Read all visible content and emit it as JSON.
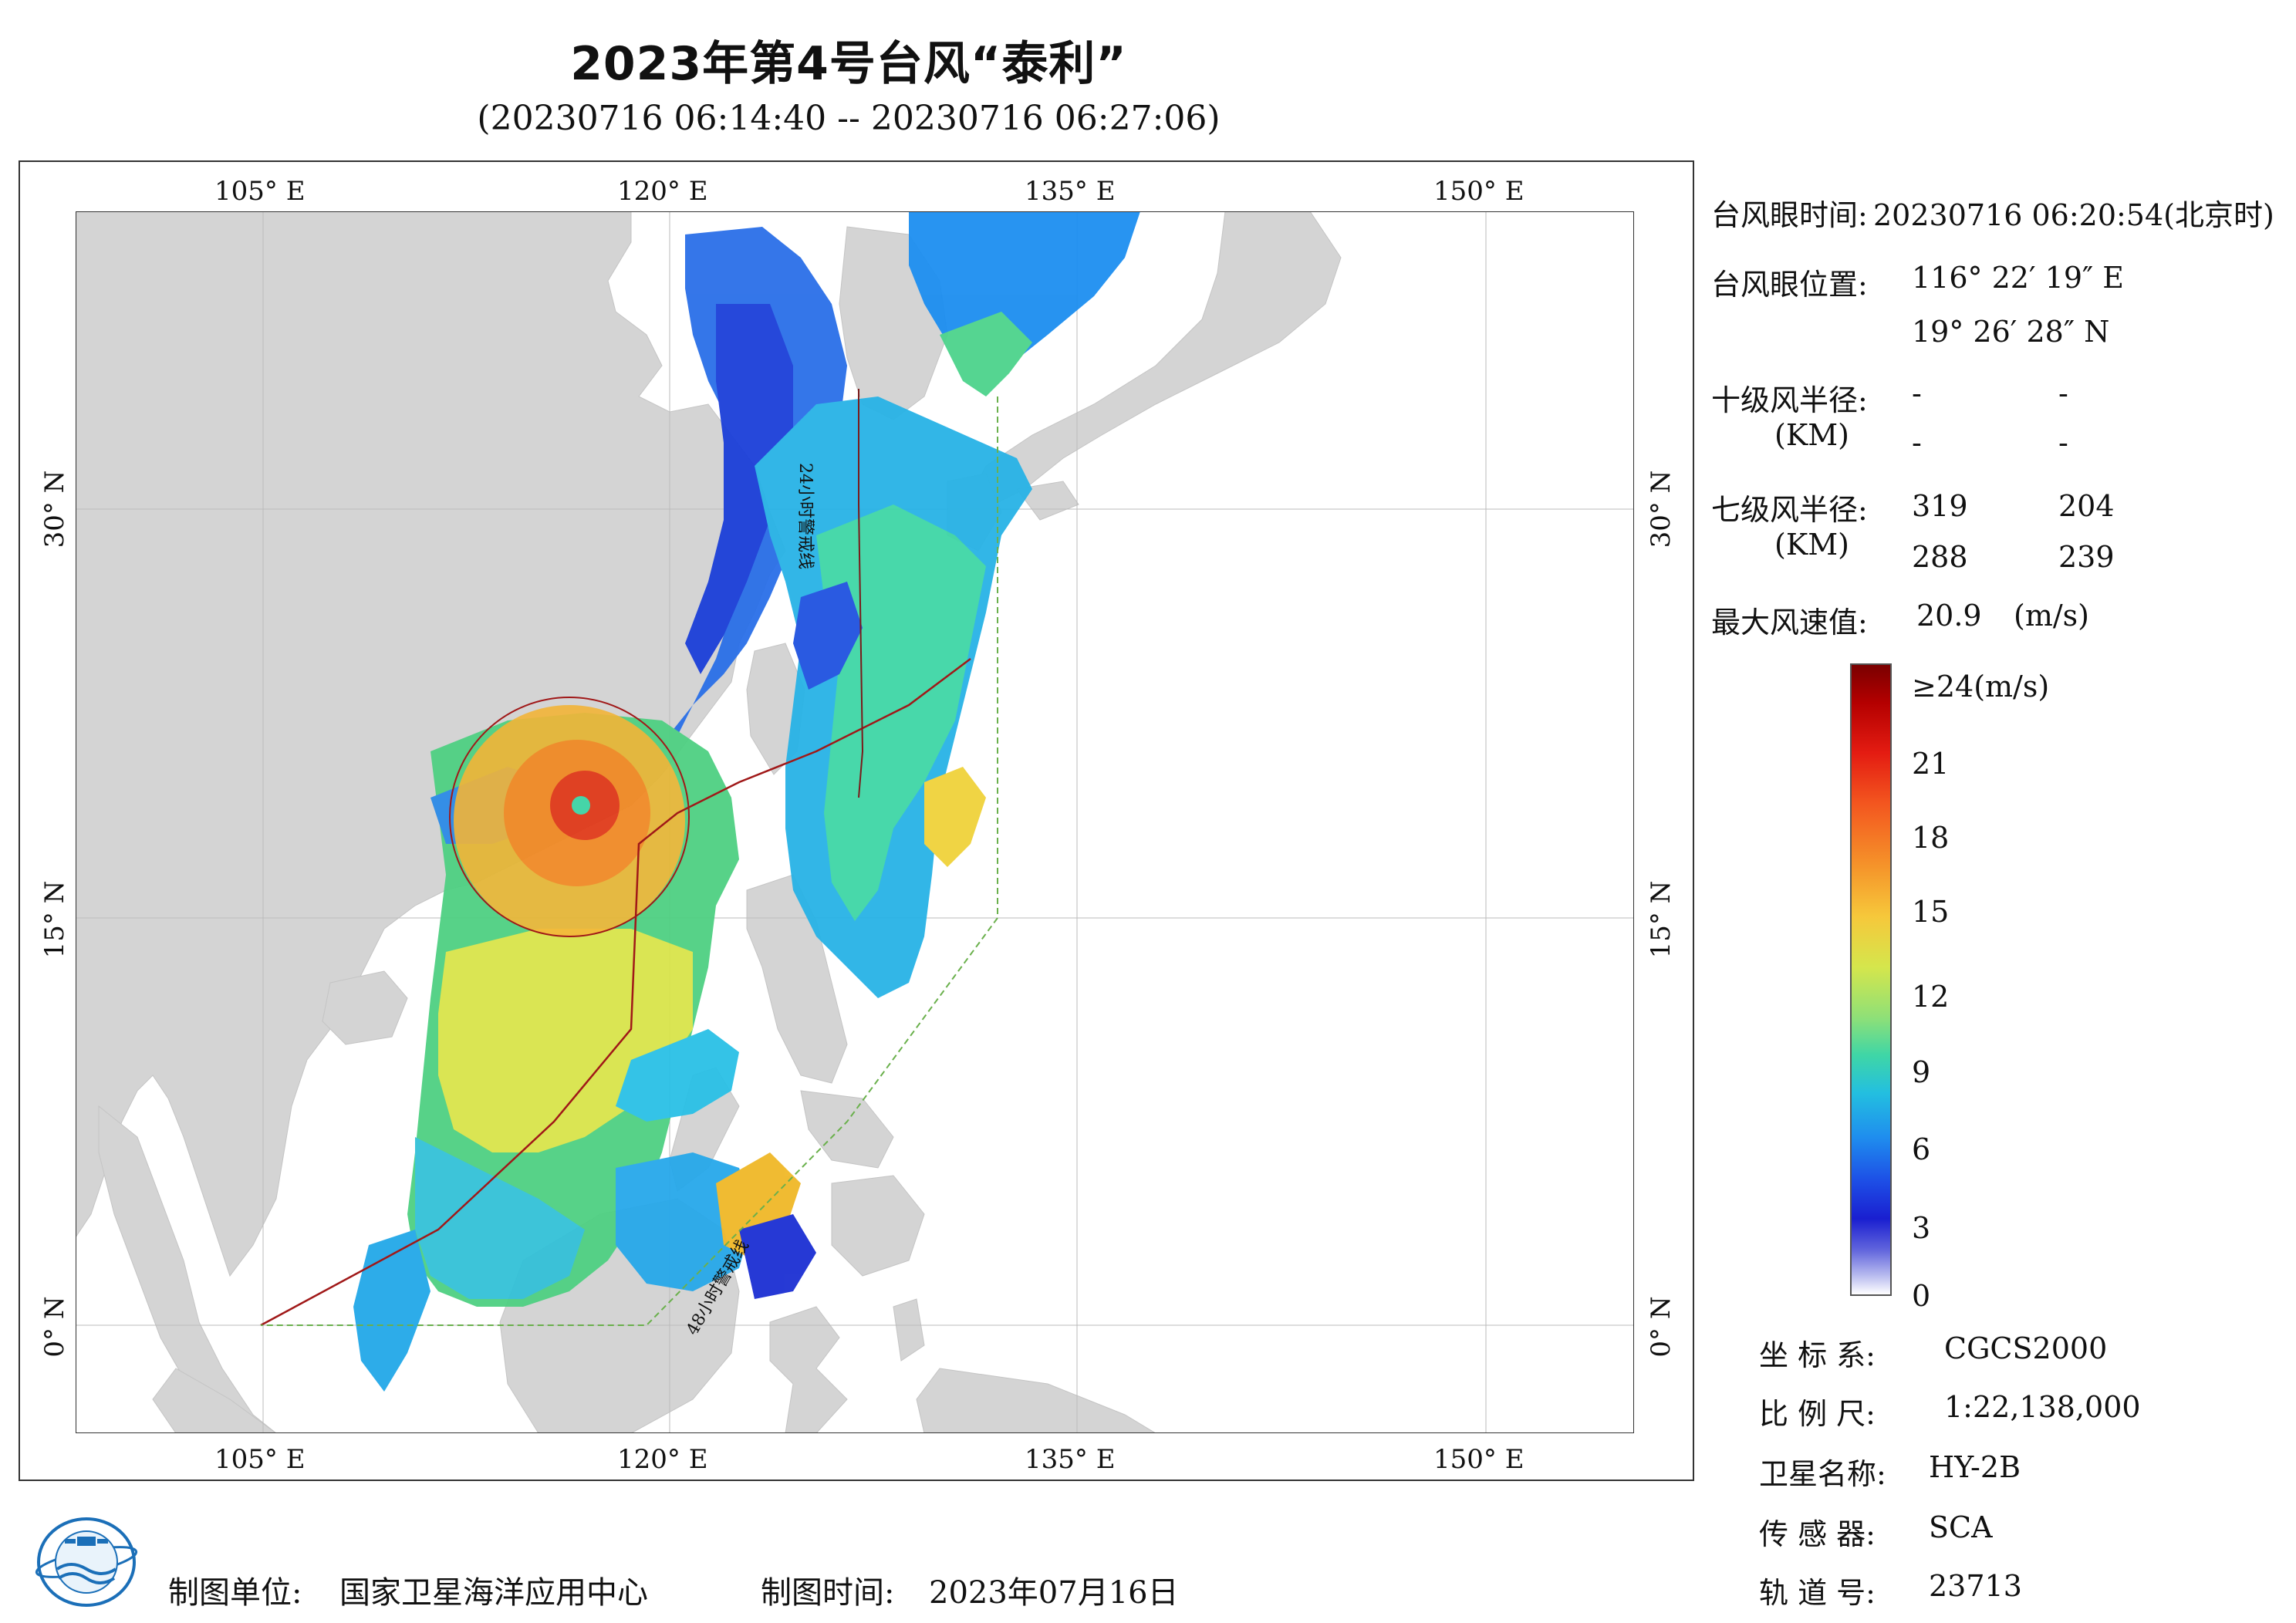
{
  "title": "2023年第4号台风“泰利”",
  "subtitle": "(20230716 06:14:40 -- 20230716 06:27:06)",
  "map": {
    "lon_labels": [
      "105° E",
      "120° E",
      "135° E",
      "150° E"
    ],
    "lat_labels": [
      "30° N",
      "15° N",
      "0° N"
    ],
    "warning_line_24h": "24小时警戒线",
    "warning_line_48h": "48小时警戒线",
    "land_color": "#d4d4d4",
    "sea_color": "#ffffff"
  },
  "typhoon_info": {
    "eye_time_label": "台风眼时间:",
    "eye_time_value": "20230716 06:20:54(北京时)",
    "eye_position_label": "台风眼位置:",
    "eye_lon": "116° 22′ 19″ E",
    "eye_lat": "19° 26′ 28″ N",
    "level10_label": "十级风半径:",
    "level10_unit": "(KM)",
    "level10_values": [
      "-",
      "-",
      "-",
      "-"
    ],
    "level7_label": "七级风半径:",
    "level7_unit": "(KM)",
    "level7_values": [
      "319",
      "204",
      "288",
      "239"
    ],
    "max_wind_label": "最大风速值:",
    "max_wind_value": "20.9",
    "max_wind_unit": "(m/s)"
  },
  "colorbar": {
    "labels": [
      "≥24(m/s)",
      "21",
      "18",
      "15",
      "12",
      "9",
      "6",
      "3",
      "0"
    ]
  },
  "meta": {
    "crs_label": "坐 标 系:",
    "crs_value": "CGCS2000",
    "scale_label": "比 例 尺:",
    "scale_value": "1:22,138,000",
    "satellite_label": "卫星名称:",
    "satellite_value": "HY-2B",
    "sensor_label": "传 感 器:",
    "sensor_value": "SCA",
    "orbit_label": "轨 道 号:",
    "orbit_value": "23713"
  },
  "footer": {
    "org_label": "制图单位:",
    "org_value": "国家卫星海洋应用中心",
    "date_label": "制图时间:",
    "date_value": "2023年07月16日"
  }
}
